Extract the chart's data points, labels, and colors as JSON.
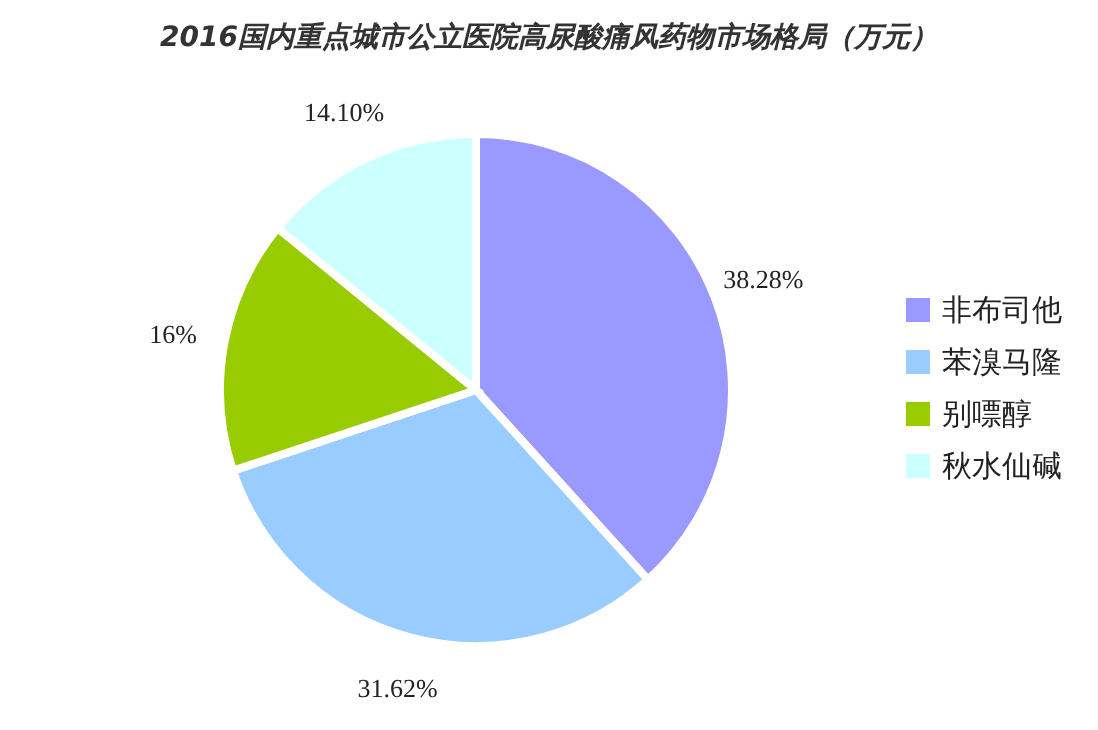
{
  "chart_data": {
    "type": "pie",
    "title": "2016国内重点城市公立医院高尿酸痛风药物市场格局（万元）",
    "categories": [
      "非布司他",
      "苯溴马隆",
      "别嘌醇",
      "秋水仙碱"
    ],
    "values": [
      38.28,
      31.62,
      16,
      14.1
    ],
    "value_labels": [
      "38.28%",
      "31.62%",
      "16%",
      "14.10%"
    ],
    "colors": [
      "#9999ff",
      "#99ccff",
      "#99cc00",
      "#ccffff"
    ],
    "legend": "right"
  }
}
